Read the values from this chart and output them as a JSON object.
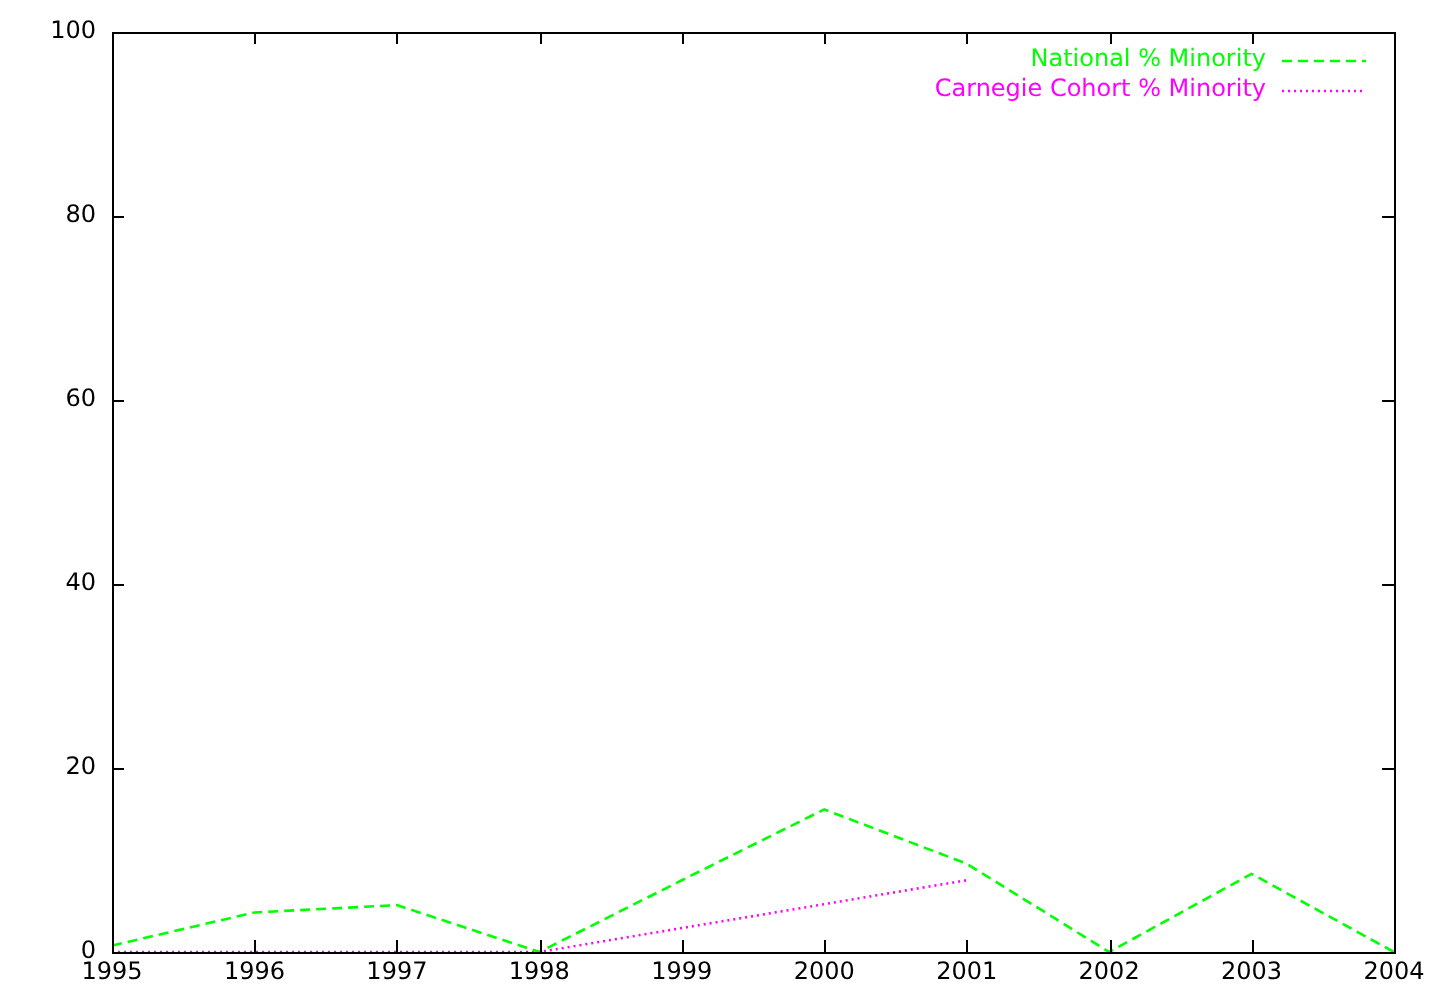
{
  "chart_data": {
    "type": "line",
    "x": [
      1995,
      1996,
      1997,
      1998,
      1999,
      2000,
      2001,
      2002,
      2003,
      2004
    ],
    "series": [
      {
        "name": "National % Minority",
        "color": "#00ff00",
        "line_style": "dashed",
        "values": [
          0.7,
          4.3,
          5.1,
          0,
          7.8,
          15.5,
          9.6,
          0,
          8.5,
          0
        ]
      },
      {
        "name": "Carnegie Cohort % Minority",
        "color": "#ff00ff",
        "line_style": "dotted",
        "values": [
          0,
          0,
          0,
          0,
          2.6,
          5.2,
          7.8,
          null,
          null,
          null
        ]
      }
    ],
    "xlim": [
      1995,
      2004
    ],
    "xticks": [
      1995,
      1996,
      1997,
      1998,
      1999,
      2000,
      2001,
      2002,
      2003,
      2004
    ],
    "ylim": [
      0,
      100
    ],
    "yticks": [
      0,
      20,
      40,
      60,
      80,
      100
    ],
    "grid": false,
    "legend": "top right",
    "marker": "none"
  }
}
